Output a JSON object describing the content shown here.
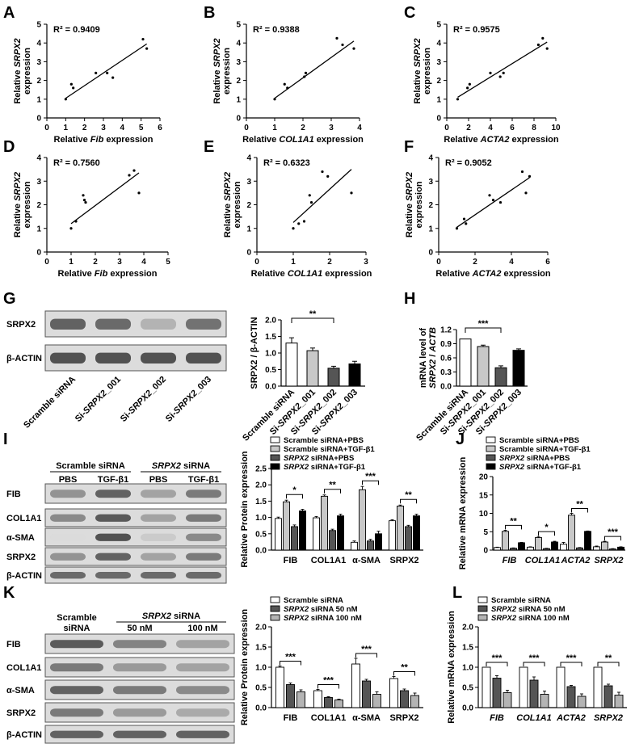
{
  "panel_labels": [
    "A",
    "B",
    "C",
    "D",
    "E",
    "F",
    "G",
    "H",
    "I",
    "J",
    "K",
    "L"
  ],
  "colors": {
    "white": "#ffffff",
    "light_gray": "#c8c8c8",
    "dark_gray": "#555555",
    "black": "#000000"
  },
  "chart_data": [
    {
      "id": "A",
      "type": "scatter",
      "r2": "R² = 0.9409",
      "xlabel": "Relative Fib expression",
      "ylabel": [
        "Relative SRPX2",
        "expression"
      ],
      "xlim": [
        0,
        6
      ],
      "ylim": [
        0,
        5
      ],
      "xticks": [
        0,
        1,
        2,
        3,
        4,
        5,
        6
      ],
      "yticks": [
        0,
        1,
        2,
        3,
        4,
        5
      ],
      "x": [
        1.0,
        1.3,
        1.4,
        2.6,
        3.2,
        3.5,
        5.1,
        5.3
      ],
      "y": [
        1.0,
        1.8,
        1.6,
        2.4,
        2.4,
        2.15,
        4.2,
        3.7
      ],
      "fit_x": [
        1.0,
        5.3
      ],
      "fit_y": [
        1.05,
        3.95
      ]
    },
    {
      "id": "B",
      "type": "scatter",
      "r2": "R² = 0.9388",
      "xlabel": "Relative COL1A1 expression",
      "ylabel": [
        "Relative SRPX2",
        "expression"
      ],
      "xlim": [
        0,
        4
      ],
      "ylim": [
        0,
        5
      ],
      "xticks": [
        0,
        1,
        2,
        3,
        4
      ],
      "yticks": [
        0,
        1,
        2,
        3,
        4,
        5
      ],
      "x": [
        1.0,
        1.35,
        1.45,
        2.05,
        2.1,
        3.2,
        3.4,
        3.8
      ],
      "y": [
        1.0,
        1.8,
        1.6,
        2.2,
        2.4,
        4.25,
        3.9,
        3.7
      ],
      "fit_x": [
        1.0,
        3.8
      ],
      "fit_y": [
        1.05,
        4.1
      ]
    },
    {
      "id": "C",
      "type": "scatter",
      "r2": "R² = 0.9575",
      "xlabel": "Relative ACTA2 expression",
      "ylabel": [
        "Relative SRPX2",
        "expression"
      ],
      "xlim": [
        0,
        10
      ],
      "ylim": [
        0,
        5
      ],
      "xticks": [
        0,
        2,
        4,
        6,
        8,
        10
      ],
      "yticks": [
        0,
        1,
        2,
        3,
        4,
        5
      ],
      "x": [
        1.0,
        1.9,
        2.1,
        4.0,
        4.9,
        5.2,
        8.4,
        8.8,
        9.2
      ],
      "y": [
        1.0,
        1.6,
        1.8,
        2.4,
        2.2,
        2.4,
        3.9,
        4.25,
        3.7
      ],
      "fit_x": [
        1.0,
        9.2
      ],
      "fit_y": [
        1.1,
        4.05
      ]
    },
    {
      "id": "D",
      "type": "scatter",
      "r2": "R² = 0.7560",
      "xlabel": "Relative Fib expression",
      "ylabel": [
        "Relative SRPX2",
        "expression"
      ],
      "xlim": [
        0,
        5
      ],
      "ylim": [
        0,
        4
      ],
      "xticks": [
        0,
        1,
        2,
        3,
        4,
        5
      ],
      "yticks": [
        0,
        1,
        2,
        3,
        4
      ],
      "x": [
        1.0,
        1.2,
        1.5,
        1.55,
        1.6,
        3.4,
        3.6,
        3.8
      ],
      "y": [
        1.0,
        1.3,
        2.4,
        2.2,
        2.1,
        3.25,
        3.45,
        2.5
      ],
      "fit_x": [
        1.0,
        3.8
      ],
      "fit_y": [
        1.2,
        3.35
      ]
    },
    {
      "id": "E",
      "type": "scatter",
      "r2": "R² = 0.6323",
      "xlabel": "Relative COL1A1 expression",
      "ylabel": [
        "Relative SRPX2",
        "expression"
      ],
      "xlim": [
        0,
        3
      ],
      "ylim": [
        0,
        4
      ],
      "xticks": [
        0,
        1,
        2,
        3
      ],
      "yticks": [
        0,
        1,
        2,
        3,
        4
      ],
      "x": [
        1.0,
        1.15,
        1.3,
        1.45,
        1.5,
        1.8,
        1.95,
        2.6
      ],
      "y": [
        1.0,
        1.2,
        1.3,
        2.4,
        2.1,
        3.4,
        3.2,
        2.5
      ],
      "fit_x": [
        1.0,
        2.6
      ],
      "fit_y": [
        1.25,
        3.5
      ]
    },
    {
      "id": "F",
      "type": "scatter",
      "r2": "R² = 0.9052",
      "xlabel": "Relative ACTA2 expression",
      "ylabel": [
        "Relative SRPX2",
        "expression"
      ],
      "xlim": [
        0,
        6
      ],
      "ylim": [
        0,
        4
      ],
      "xticks": [
        0,
        2,
        4,
        6
      ],
      "yticks": [
        0,
        1,
        2,
        3,
        4
      ],
      "x": [
        1.0,
        1.4,
        1.5,
        2.8,
        3.0,
        3.4,
        4.6,
        4.8,
        5.0
      ],
      "y": [
        1.0,
        1.4,
        1.2,
        2.4,
        2.2,
        2.1,
        3.4,
        2.5,
        3.2
      ],
      "fit_x": [
        1.0,
        5.0
      ],
      "fit_y": [
        1.05,
        3.15
      ]
    },
    {
      "id": "G",
      "type": "bar",
      "ylabel": "SRPX2 / β-ACTIN",
      "ylim": [
        0,
        2.0
      ],
      "yticks": [
        "0.0",
        "0.5",
        "1.0",
        "1.5",
        "2.0"
      ],
      "categories": [
        "Scramble siRNA",
        "Si-SRPX2_001",
        "Si-SRPX2_002",
        "Si-SRPX2_003"
      ],
      "values": [
        1.3,
        1.07,
        0.54,
        0.67
      ],
      "errors": [
        0.16,
        0.08,
        0.06,
        0.08
      ],
      "fills": [
        "#ffffff",
        "#c8c8c8",
        "#555555",
        "#000000"
      ],
      "sig": [
        {
          "from": 0,
          "to": 2,
          "label": "**"
        }
      ]
    },
    {
      "id": "H",
      "type": "bar",
      "ylabel": [
        "mRNA level of",
        "SRPX2 / ACTB"
      ],
      "ylim": [
        0,
        1.2
      ],
      "yticks": [
        "0.0",
        "0.3",
        "0.6",
        "0.9",
        "1.2"
      ],
      "categories": [
        "Scramble siRNA",
        "Si-SRPX2_001",
        "Si-SRPX2_002",
        "Si-SRPX2_003"
      ],
      "values": [
        1.0,
        0.84,
        0.39,
        0.76
      ],
      "errors": [
        0.0,
        0.03,
        0.04,
        0.03
      ],
      "fills": [
        "#ffffff",
        "#c8c8c8",
        "#555555",
        "#000000"
      ],
      "sig": [
        {
          "from": 0,
          "to": 2,
          "label": "***"
        }
      ]
    },
    {
      "id": "I",
      "type": "bar",
      "ylabel": "Relative Protein expression",
      "ylim": [
        0,
        2.5
      ],
      "yticks": [
        "0.0",
        "0.5",
        "1.0",
        "1.5",
        "2.0",
        "2.5"
      ],
      "categories": [
        "FIB",
        "COL1A1",
        "α-SMA",
        "SRPX2"
      ],
      "series": [
        {
          "name": "Scramble siRNA+PBS",
          "values": [
            0.97,
            0.99,
            0.24,
            0.9
          ],
          "errors": [
            0.04,
            0.04,
            0.04,
            0.03
          ]
        },
        {
          "name": "Scramble siRNA+TGF-β1",
          "values": [
            1.48,
            1.65,
            1.85,
            1.35
          ],
          "errors": [
            0.05,
            0.04,
            0.1,
            0.03
          ]
        },
        {
          "name": "SRPX2 siRNA+PBS",
          "values": [
            0.72,
            0.6,
            0.28,
            0.72
          ],
          "errors": [
            0.05,
            0.04,
            0.05,
            0.04
          ]
        },
        {
          "name": "SRPX2 siRNA+TGF-β1",
          "values": [
            1.2,
            1.05,
            0.5,
            1.05
          ],
          "errors": [
            0.05,
            0.05,
            0.08,
            0.05
          ]
        }
      ],
      "fills": [
        "#ffffff",
        "#c8c8c8",
        "#555555",
        "#000000"
      ],
      "legend": "top",
      "sig": [
        {
          "group": 0,
          "from": 1,
          "to": 3,
          "label": "*"
        },
        {
          "group": 1,
          "from": 1,
          "to": 3,
          "label": "**"
        },
        {
          "group": 2,
          "from": 1,
          "to": 3,
          "label": "***"
        },
        {
          "group": 3,
          "from": 1,
          "to": 3,
          "label": "**"
        }
      ]
    },
    {
      "id": "J",
      "type": "bar",
      "ylabel": "Relative mRNA expression",
      "ylim": [
        0,
        20
      ],
      "yticks": [
        "0",
        "5",
        "10",
        "15",
        "20"
      ],
      "categories": [
        "FIB",
        "COL1A1",
        "ACTA2",
        "SRPX2"
      ],
      "series": [
        {
          "name": "Scramble siRNA+PBS",
          "values": [
            0.7,
            0.8,
            1.6,
            0.9
          ],
          "errors": [
            0.1,
            0.1,
            0.5,
            0.2
          ]
        },
        {
          "name": "Scramble siRNA+TGF-β1",
          "values": [
            5.1,
            3.4,
            9.5,
            2.2
          ],
          "errors": [
            0.3,
            0.3,
            0.5,
            0.2
          ]
        },
        {
          "name": "SRPX2 siRNA+PBS",
          "values": [
            0.5,
            0.4,
            0.6,
            0.3
          ],
          "errors": [
            0.1,
            0.1,
            0.1,
            0.1
          ]
        },
        {
          "name": "SRPX2 siRNA+TGF-β1",
          "values": [
            2.0,
            2.2,
            5.1,
            0.8
          ],
          "errors": [
            0.1,
            0.2,
            0.1,
            0.1
          ]
        }
      ],
      "fills": [
        "#ffffff",
        "#c8c8c8",
        "#555555",
        "#000000"
      ],
      "legend": "top",
      "sig": [
        {
          "group": 0,
          "from": 1,
          "to": 3,
          "label": "**"
        },
        {
          "group": 1,
          "from": 1,
          "to": 3,
          "label": "*"
        },
        {
          "group": 2,
          "from": 1,
          "to": 3,
          "label": "**"
        },
        {
          "group": 3,
          "from": 1,
          "to": 3,
          "label": "***"
        }
      ]
    },
    {
      "id": "K",
      "type": "bar",
      "ylabel": "Relative Protein expression",
      "ylim": [
        0,
        2.0
      ],
      "yticks": [
        "0.0",
        "0.5",
        "1.0",
        "1.5",
        "2.0"
      ],
      "categories": [
        "FIB",
        "COL1A1",
        "α-SMA",
        "SRPX2"
      ],
      "series": [
        {
          "name": "Scramble siRNA",
          "values": [
            1.0,
            0.42,
            1.08,
            0.72
          ],
          "errors": [
            0.03,
            0.03,
            0.14,
            0.05
          ]
        },
        {
          "name": "SRPX2 siRNA 50 nM",
          "values": [
            0.57,
            0.25,
            0.66,
            0.42
          ],
          "errors": [
            0.04,
            0.02,
            0.04,
            0.04
          ]
        },
        {
          "name": "SRPX2 siRNA 100 nM",
          "values": [
            0.39,
            0.19,
            0.33,
            0.3
          ],
          "errors": [
            0.05,
            0.02,
            0.06,
            0.06
          ]
        }
      ],
      "fills": [
        "#ffffff",
        "#555555",
        "#b4b4b4"
      ],
      "legend": "top",
      "sig": [
        {
          "group": 0,
          "from": 0,
          "to": 2,
          "label": "***"
        },
        {
          "group": 1,
          "from": 0,
          "to": 2,
          "label": "***"
        },
        {
          "group": 2,
          "from": 0,
          "to": 2,
          "label": "***"
        },
        {
          "group": 3,
          "from": 0,
          "to": 2,
          "label": "**"
        }
      ]
    },
    {
      "id": "L",
      "type": "bar",
      "ylabel": "Relative mRNA expression",
      "ylim": [
        0,
        2.0
      ],
      "yticks": [
        "0.0",
        "0.5",
        "1.0",
        "1.5",
        "2.0"
      ],
      "categories": [
        "FIB",
        "COL1A1",
        "ACTA2",
        "SRPX2"
      ],
      "series": [
        {
          "name": "Scramble siRNA",
          "values": [
            1.0,
            1.0,
            1.0,
            1.0
          ],
          "errors": [
            0.0,
            0.0,
            0.0,
            0.0
          ]
        },
        {
          "name": "SRPX2 siRNA 50 nM",
          "values": [
            0.73,
            0.68,
            0.52,
            0.54
          ],
          "errors": [
            0.06,
            0.08,
            0.03,
            0.04
          ]
        },
        {
          "name": "SRPX2 siRNA 100 nM",
          "values": [
            0.37,
            0.33,
            0.28,
            0.31
          ],
          "errors": [
            0.06,
            0.08,
            0.06,
            0.07
          ]
        }
      ],
      "fills": [
        "#ffffff",
        "#555555",
        "#b4b4b4"
      ],
      "legend": "top",
      "sig": [
        {
          "group": 0,
          "from": 0,
          "to": 2,
          "label": "***"
        },
        {
          "group": 1,
          "from": 0,
          "to": 2,
          "label": "***"
        },
        {
          "group": 2,
          "from": 0,
          "to": 2,
          "label": "***"
        },
        {
          "group": 3,
          "from": 0,
          "to": 2,
          "label": "**"
        }
      ]
    }
  ],
  "blots": {
    "G": {
      "rows": [
        "SRPX2",
        "β-ACTIN"
      ],
      "lanes": [
        "Scramble siRNA",
        "Si-SRPX2_001",
        "Si-SRPX2_002",
        "Si-SRPX2_003"
      ],
      "intensity": [
        [
          0.85,
          0.8,
          0.35,
          0.75
        ],
        [
          0.95,
          0.95,
          0.95,
          0.95
        ]
      ]
    },
    "I": {
      "header_groups": [
        "Scramble siRNA",
        "SRPX2 siRNA"
      ],
      "header_lanes": [
        "PBS",
        "TGF-β1",
        "PBS",
        "TGF-β1"
      ],
      "rows": [
        "FIB",
        "COL1A1",
        "α-SMA",
        "SRPX2",
        "β-ACTIN"
      ],
      "intensity": [
        [
          0.55,
          0.85,
          0.45,
          0.7
        ],
        [
          0.6,
          0.9,
          0.45,
          0.7
        ],
        [
          0.1,
          0.95,
          0.2,
          0.6
        ],
        [
          0.55,
          0.85,
          0.45,
          0.7
        ],
        [
          0.8,
          0.8,
          0.8,
          0.8
        ]
      ]
    },
    "K": {
      "header_groups": [
        "Scramble siRNA",
        "SRPX2 siRNA"
      ],
      "header_lanes": [
        "50 nM",
        "100 nM"
      ],
      "rows": [
        "FIB",
        "COL1A1",
        "α-SMA",
        "SRPX2",
        "β-ACTIN"
      ],
      "intensity": [
        [
          0.9,
          0.65,
          0.45
        ],
        [
          0.7,
          0.5,
          0.45
        ],
        [
          0.85,
          0.7,
          0.6
        ],
        [
          0.7,
          0.5,
          0.4
        ],
        [
          0.85,
          0.85,
          0.85
        ]
      ]
    }
  }
}
